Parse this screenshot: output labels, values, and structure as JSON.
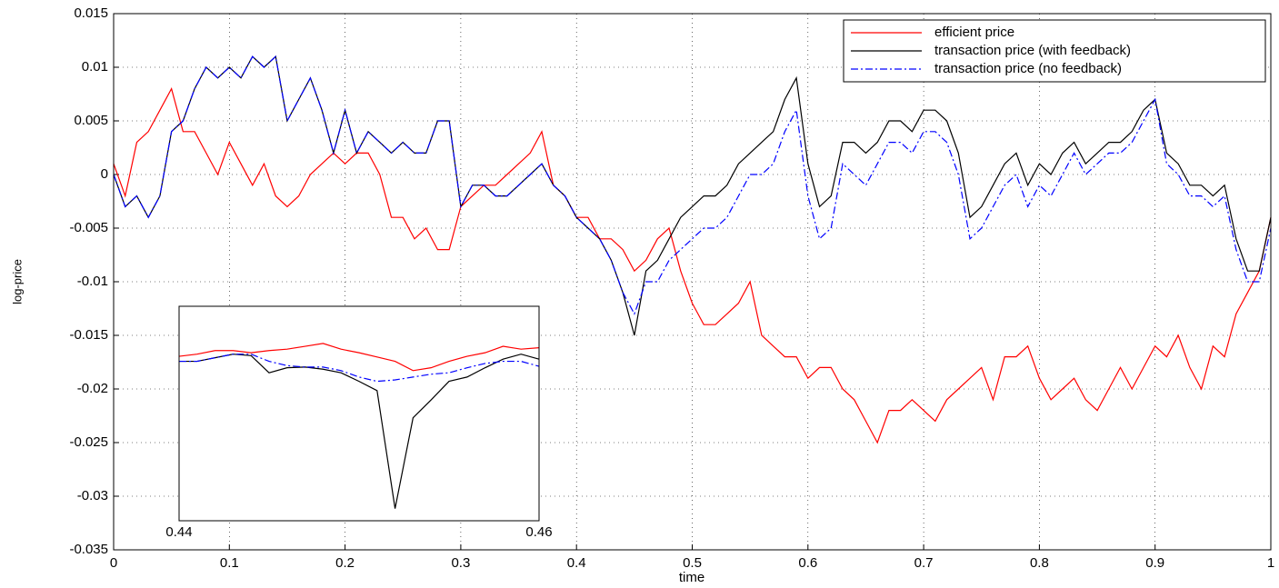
{
  "chart_data": [
    {
      "type": "line",
      "xlabel": "time",
      "ylabel": "log-price",
      "x": [
        0,
        0.01,
        0.02,
        0.03,
        0.04,
        0.05,
        0.06,
        0.07,
        0.08,
        0.09,
        0.1,
        0.11,
        0.12,
        0.13,
        0.14,
        0.15,
        0.16,
        0.17,
        0.18,
        0.19,
        0.2,
        0.21,
        0.22,
        0.23,
        0.24,
        0.25,
        0.26,
        0.27,
        0.28,
        0.29,
        0.3,
        0.31,
        0.32,
        0.33,
        0.34,
        0.35,
        0.36,
        0.37,
        0.38,
        0.39,
        0.4,
        0.41,
        0.42,
        0.43,
        0.44,
        0.45,
        0.46,
        0.47,
        0.48,
        0.49,
        0.5,
        0.51,
        0.52,
        0.53,
        0.54,
        0.55,
        0.56,
        0.57,
        0.58,
        0.59,
        0.6,
        0.61,
        0.62,
        0.63,
        0.64,
        0.65,
        0.66,
        0.67,
        0.68,
        0.69,
        0.7,
        0.71,
        0.72,
        0.73,
        0.74,
        0.75,
        0.76,
        0.77,
        0.78,
        0.79,
        0.8,
        0.81,
        0.82,
        0.83,
        0.84,
        0.85,
        0.86,
        0.87,
        0.88,
        0.89,
        0.9,
        0.91,
        0.92,
        0.93,
        0.94,
        0.95,
        0.96,
        0.97,
        0.98,
        0.99,
        1
      ],
      "series": [
        {
          "name": "efficient price",
          "color": "#ff0000",
          "dash": "solid",
          "values": [
            0.001,
            -0.002,
            0.003,
            0.004,
            0.006,
            0.008,
            0.004,
            0.004,
            0.002,
            0,
            0.003,
            0.001,
            -0.001,
            0.001,
            -0.002,
            -0.003,
            -0.002,
            0,
            0.001,
            0.002,
            0.001,
            0.002,
            0.002,
            0,
            -0.004,
            -0.004,
            -0.006,
            -0.005,
            -0.007,
            -0.007,
            -0.003,
            -0.002,
            -0.001,
            -0.001,
            0,
            0.001,
            0.002,
            0.004,
            -0.001,
            -0.002,
            -0.004,
            -0.004,
            -0.006,
            -0.006,
            -0.007,
            -0.009,
            -0.008,
            -0.006,
            -0.005,
            -0.009,
            -0.012,
            -0.014,
            -0.014,
            -0.013,
            -0.012,
            -0.01,
            -0.015,
            -0.016,
            -0.017,
            -0.017,
            -0.019,
            -0.018,
            -0.018,
            -0.02,
            -0.021,
            -0.023,
            -0.025,
            -0.022,
            -0.022,
            -0.021,
            -0.022,
            -0.023,
            -0.021,
            -0.02,
            -0.019,
            -0.018,
            -0.021,
            -0.017,
            -0.017,
            -0.016,
            -0.019,
            -0.021,
            -0.02,
            -0.019,
            -0.021,
            -0.022,
            -0.02,
            -0.018,
            -0.02,
            -0.018,
            -0.016,
            -0.017,
            -0.015,
            -0.018,
            -0.02,
            -0.016,
            -0.017,
            -0.013,
            -0.011,
            -0.009,
            -0.004
          ]
        },
        {
          "name": "transaction price (with feedback)",
          "color": "#000000",
          "dash": "solid",
          "values": [
            0,
            -0.003,
            -0.002,
            -0.004,
            -0.002,
            0.004,
            0.005,
            0.008,
            0.01,
            0.009,
            0.01,
            0.009,
            0.011,
            0.01,
            0.011,
            0.005,
            0.007,
            0.009,
            0.006,
            0.002,
            0.006,
            0.002,
            0.004,
            0.003,
            0.002,
            0.003,
            0.002,
            0.002,
            0.005,
            0.005,
            -0.003,
            -0.001,
            -0.001,
            -0.002,
            -0.002,
            -0.001,
            0,
            0.001,
            -0.001,
            -0.002,
            -0.004,
            -0.005,
            -0.006,
            -0.008,
            -0.011,
            -0.015,
            -0.009,
            -0.008,
            -0.006,
            -0.004,
            -0.003,
            -0.002,
            -0.002,
            -0.001,
            0.001,
            0.002,
            0.003,
            0.004,
            0.007,
            0.009,
            0.001,
            -0.003,
            -0.002,
            0.003,
            0.003,
            0.002,
            0.003,
            0.005,
            0.005,
            0.004,
            0.006,
            0.006,
            0.005,
            0.002,
            -0.004,
            -0.003,
            -0.001,
            0.001,
            0.002,
            -0.001,
            0.001,
            0,
            0.002,
            0.003,
            0.001,
            0.002,
            0.003,
            0.003,
            0.004,
            0.006,
            0.007,
            0.002,
            0.001,
            -0.001,
            -0.001,
            -0.002,
            -0.001,
            -0.006,
            -0.009,
            -0.009,
            -0.004
          ]
        },
        {
          "name": "transaction price (no feedback)",
          "color": "#0000ff",
          "dash": "dashdot",
          "values": [
            0,
            -0.003,
            -0.002,
            -0.004,
            -0.002,
            0.004,
            0.005,
            0.008,
            0.01,
            0.009,
            0.01,
            0.009,
            0.011,
            0.01,
            0.011,
            0.005,
            0.007,
            0.009,
            0.006,
            0.002,
            0.006,
            0.002,
            0.004,
            0.003,
            0.002,
            0.003,
            0.002,
            0.002,
            0.005,
            0.005,
            -0.003,
            -0.001,
            -0.001,
            -0.002,
            -0.002,
            -0.001,
            0,
            0.001,
            -0.001,
            -0.002,
            -0.004,
            -0.005,
            -0.006,
            -0.008,
            -0.011,
            -0.013,
            -0.01,
            -0.01,
            -0.008,
            -0.007,
            -0.006,
            -0.005,
            -0.005,
            -0.004,
            -0.002,
            0,
            0,
            0.001,
            0.004,
            0.006,
            -0.002,
            -0.006,
            -0.005,
            0.001,
            0,
            -0.001,
            0.001,
            0.003,
            0.003,
            0.002,
            0.004,
            0.004,
            0.003,
            0,
            -0.006,
            -0.005,
            -0.003,
            -0.001,
            0,
            -0.003,
            -0.001,
            -0.002,
            0,
            0.002,
            0,
            0.001,
            0.002,
            0.002,
            0.003,
            0.005,
            0.007,
            0.001,
            0,
            -0.002,
            -0.002,
            -0.003,
            -0.002,
            -0.007,
            -0.01,
            -0.01,
            -0.005
          ]
        }
      ],
      "xlim": [
        0,
        1
      ],
      "xticks": [
        0,
        0.1,
        0.2,
        0.3,
        0.4,
        0.5,
        0.6,
        0.7,
        0.8,
        0.9,
        1
      ],
      "ylim": [
        -0.035,
        0.015
      ],
      "yticks": [
        -0.035,
        -0.03,
        -0.025,
        -0.02,
        -0.015,
        -0.01,
        -0.005,
        0,
        0.005,
        0.01,
        0.015
      ],
      "grid": true,
      "legend": "northeast"
    },
    {
      "type": "line",
      "x": [
        0.44,
        0.441,
        0.442,
        0.443,
        0.444,
        0.445,
        0.446,
        0.447,
        0.448,
        0.449,
        0.45,
        0.451,
        0.452,
        0.453,
        0.454,
        0.455,
        0.456,
        0.457,
        0.458,
        0.459,
        0.46
      ],
      "series": [
        {
          "color": "#ff0000",
          "dash": "solid",
          "values": [
            -0.012,
            -0.0117,
            -0.0112,
            -0.0112,
            -0.0115,
            -0.0112,
            -0.011,
            -0.0106,
            -0.0102,
            -0.011,
            -0.0115,
            -0.0121,
            -0.0127,
            -0.014,
            -0.0136,
            -0.0127,
            -0.012,
            -0.0115,
            -0.0106,
            -0.011,
            -0.0108
          ]
        },
        {
          "color": "#000000",
          "dash": "solid",
          "values": [
            -0.0127,
            -0.0127,
            -0.0122,
            -0.0117,
            -0.0119,
            -0.0143,
            -0.0136,
            -0.0135,
            -0.0138,
            -0.0143,
            -0.0155,
            -0.0168,
            -0.0333,
            -0.0206,
            -0.0181,
            -0.0155,
            -0.0149,
            -0.0136,
            -0.0124,
            -0.0117,
            -0.0124
          ]
        },
        {
          "color": "#0000ff",
          "dash": "dashdot",
          "values": [
            -0.0127,
            -0.0127,
            -0.0122,
            -0.0117,
            -0.0117,
            -0.0127,
            -0.0133,
            -0.0135,
            -0.0135,
            -0.014,
            -0.0149,
            -0.0155,
            -0.0153,
            -0.0149,
            -0.0145,
            -0.0143,
            -0.0136,
            -0.013,
            -0.0127,
            -0.0127,
            -0.0134
          ]
        }
      ],
      "xlim": [
        0.44,
        0.46
      ],
      "xticks": [
        0.44,
        0.46
      ],
      "ylim": [
        -0.035,
        -0.005
      ],
      "grid": false
    }
  ]
}
